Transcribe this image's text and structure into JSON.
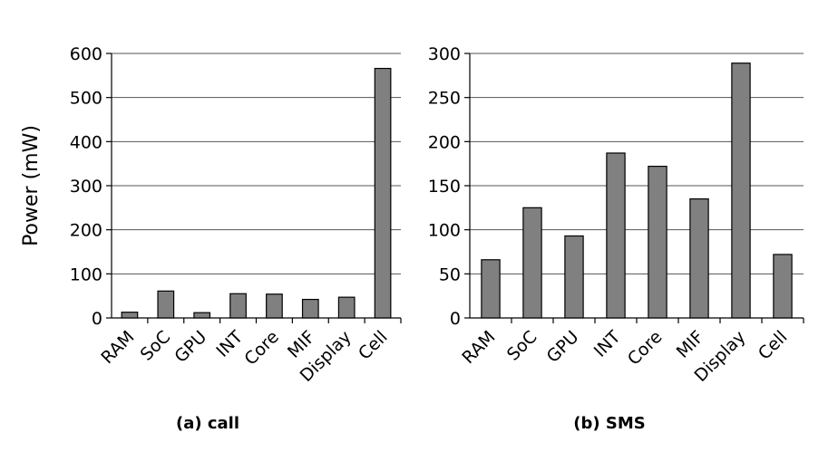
{
  "figure": {
    "ylabel": "Power (mW)"
  },
  "chart_data": [
    {
      "type": "bar",
      "title": "(a) call",
      "ylabel": "Power (mW)",
      "categories": [
        "RAM",
        "SoC",
        "GPU",
        "INT",
        "Core",
        "MIF",
        "Display",
        "Cell"
      ],
      "values": [
        13,
        61,
        12,
        55,
        54,
        42,
        47,
        566
      ],
      "ylim": [
        0,
        600
      ],
      "yticks": [
        0,
        100,
        200,
        300,
        400,
        500,
        600
      ],
      "grid": true,
      "bar_color": "#808080"
    },
    {
      "type": "bar",
      "title": "(b) SMS",
      "ylabel": "",
      "categories": [
        "RAM",
        "SoC",
        "GPU",
        "INT",
        "Core",
        "MIF",
        "Display",
        "Cell"
      ],
      "values": [
        66,
        125,
        93,
        187,
        172,
        135,
        289,
        72
      ],
      "ylim": [
        0,
        300
      ],
      "yticks": [
        0,
        50,
        100,
        150,
        200,
        250,
        300
      ],
      "grid": true,
      "bar_color": "#808080"
    }
  ]
}
